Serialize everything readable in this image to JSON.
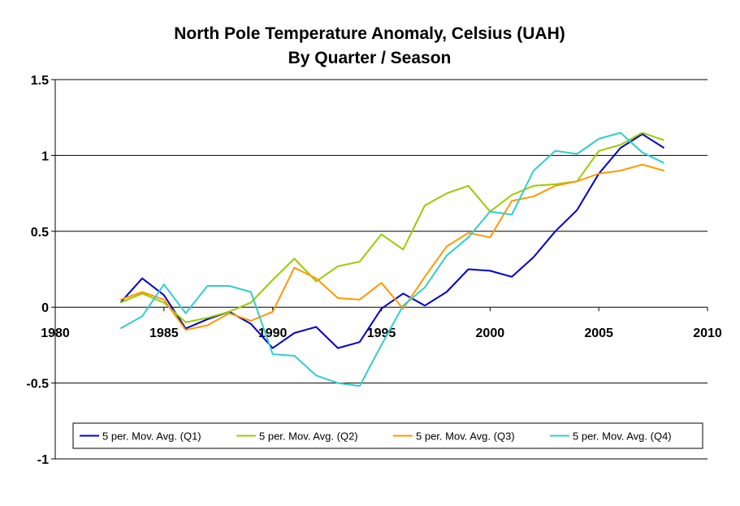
{
  "chart_data": {
    "type": "line",
    "title": "North Pole Temperature Anomaly, Celsius (UAH)",
    "subtitle": "By Quarter / Season",
    "xlabel": "",
    "ylabel": "",
    "xlim": [
      1980,
      2010
    ],
    "ylim": [
      -1,
      1.5
    ],
    "x_ticks": [
      "1980",
      "1985",
      "1990",
      "1995",
      "2000",
      "2005",
      "2010"
    ],
    "y_ticks": [
      "1.5",
      "1",
      "0.5",
      "0",
      "-0.5",
      "-1"
    ],
    "grid": "horizontal",
    "legend_position": "bottom",
    "x": [
      1983,
      1984,
      1985,
      1986,
      1987,
      1988,
      1989,
      1990,
      1991,
      1992,
      1993,
      1994,
      1995,
      1996,
      1997,
      1998,
      1999,
      2000,
      2001,
      2002,
      2003,
      2004,
      2005,
      2006,
      2007,
      2008
    ],
    "series": [
      {
        "name": "5 per. Mov. Avg. (Q1)",
        "color": "#0000CC",
        "values": [
          0.03,
          0.19,
          0.08,
          -0.14,
          -0.08,
          -0.03,
          -0.11,
          -0.27,
          -0.17,
          -0.13,
          -0.27,
          -0.23,
          -0.01,
          0.09,
          0.01,
          0.1,
          0.25,
          0.24,
          0.2,
          0.33,
          0.5,
          0.64,
          0.88,
          1.05,
          1.14,
          1.05
        ]
      },
      {
        "name": "5 per. Mov. Avg. (Q2)",
        "color": "#99CC00",
        "values": [
          0.03,
          0.09,
          0.03,
          -0.1,
          -0.07,
          -0.03,
          0.03,
          0.18,
          0.32,
          0.17,
          0.27,
          0.3,
          0.48,
          0.38,
          0.67,
          0.75,
          0.8,
          0.63,
          0.74,
          0.8,
          0.81,
          0.83,
          1.03,
          1.07,
          1.15,
          1.1
        ]
      },
      {
        "name": "5 per. Mov. Avg. (Q3)",
        "color": "#FF9900",
        "values": [
          0.05,
          0.1,
          0.05,
          -0.15,
          -0.12,
          -0.04,
          -0.09,
          -0.03,
          0.26,
          0.19,
          0.06,
          0.05,
          0.16,
          -0.01,
          0.2,
          0.4,
          0.49,
          0.46,
          0.7,
          0.73,
          0.8,
          0.83,
          0.88,
          0.9,
          0.94,
          0.9
        ]
      },
      {
        "name": "5 per. Mov. Avg. (Q4)",
        "color": "#33CCCC",
        "values": [
          -0.14,
          -0.06,
          0.15,
          -0.04,
          0.14,
          0.14,
          0.1,
          -0.31,
          -0.32,
          -0.45,
          -0.5,
          -0.52,
          -0.25,
          0.01,
          0.13,
          0.34,
          0.46,
          0.63,
          0.61,
          0.9,
          1.03,
          1.01,
          1.11,
          1.15,
          1.02,
          0.95
        ]
      }
    ]
  }
}
